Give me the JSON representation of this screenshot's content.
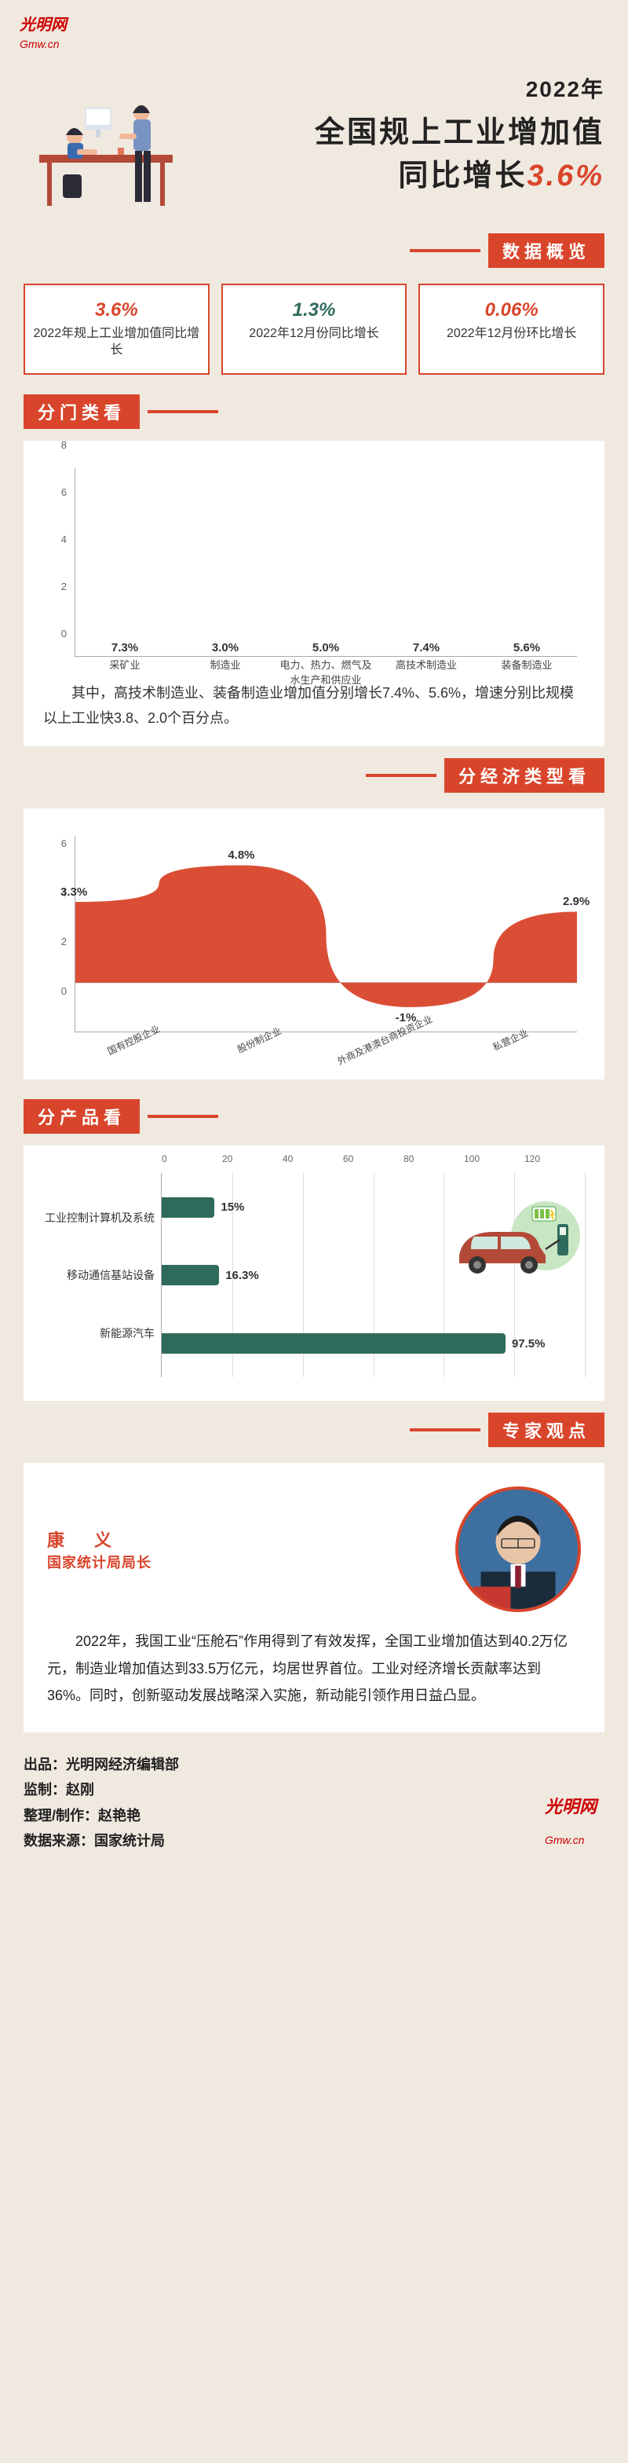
{
  "logo": {
    "top": "光明网",
    "sub": "Gmw.cn"
  },
  "header": {
    "year": "2022年",
    "line1": "全国规上工业增加值",
    "line2_pre": "同比增长",
    "line2_pct": "3.6%"
  },
  "sections": {
    "overview": "数据概览",
    "by_category": "分门类看",
    "by_econ": "分经济类型看",
    "by_product": "分产品看",
    "expert": "专家观点"
  },
  "overview_cards": [
    {
      "value": "3.6%",
      "desc": "2022年规上工业增加值同比增长",
      "color": "c-red"
    },
    {
      "value": "1.3%",
      "desc": "2022年12月份同比增长",
      "color": "c-green"
    },
    {
      "value": "0.06%",
      "desc": "2022年12月份环比增长",
      "color": "c-red"
    }
  ],
  "by_category": {
    "type": "bar",
    "y_ticks": [
      "0",
      "2",
      "4",
      "6",
      "8"
    ],
    "y_max": 8,
    "categories": [
      "采矿业",
      "制造业",
      "电力、热力、燃气及水生产和供应业",
      "高技术制造业",
      "装备制造业"
    ],
    "values": [
      7.3,
      3.0,
      5.0,
      7.4,
      5.6
    ],
    "labels": [
      "7.3%",
      "3.0%",
      "5.0%",
      "7.4%",
      "5.6%"
    ],
    "bar_color": "#2f6b5d",
    "note": "其中，高技术制造业、装备制造业增加值分别增长7.4%、5.6%，增速分别比规模以上工业快3.8、2.0个百分点。"
  },
  "by_econ": {
    "type": "area",
    "y_ticks": [
      "0",
      "2",
      "4",
      "6"
    ],
    "y_max": 6,
    "y_min": -2,
    "categories": [
      "国有控股企业",
      "股份制企业",
      "外商及港澳台商投资企业",
      "私营企业"
    ],
    "values": [
      3.3,
      4.8,
      -1,
      2.9
    ],
    "labels": [
      "3.3%",
      "4.8%",
      "-1%",
      "2.9%"
    ],
    "fill_color": "#d9452b",
    "bg_color": "#ffffff"
  },
  "by_product": {
    "type": "hbar",
    "x_ticks": [
      "0",
      "20",
      "40",
      "60",
      "80",
      "100",
      "120"
    ],
    "x_max": 120,
    "items": [
      {
        "name": "工业控制计算机及系统",
        "value": 15,
        "label": "15%"
      },
      {
        "name": "移动通信基站设备",
        "value": 16.3,
        "label": "16.3%"
      },
      {
        "name": "新能源汽车",
        "value": 97.5,
        "label": "97.5%"
      }
    ],
    "bar_color": "#2f6b5d"
  },
  "expert": {
    "name": "康　义",
    "title": "国家统计局局长",
    "text": "2022年，我国工业“压舱石”作用得到了有效发挥，全国工业增加值达到40.2万亿元，制造业增加值达到33.5万亿元，均居世界首位。工业对经济增长贡献率达到36%。同时，创新驱动发展战略深入实施，新动能引领作用日益凸显。"
  },
  "credits": {
    "l1": "出品：光明网经济编辑部",
    "l2": "监制：赵刚",
    "l3": "整理/制作：赵艳艳",
    "l4": "数据来源：国家统计局"
  },
  "colors": {
    "accent_red": "#d9452b",
    "accent_green": "#2f6b5d",
    "page_bg": "#f0e9e0",
    "panel_bg": "#ffffff"
  }
}
